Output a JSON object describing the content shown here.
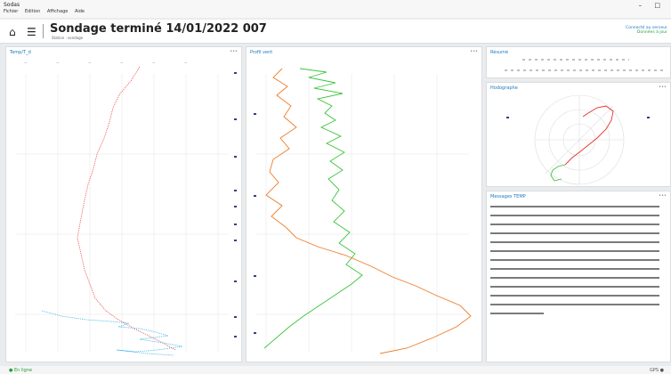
{
  "window": {
    "title": "Sodas",
    "controls": "– □"
  },
  "menu": [
    "Fichier",
    "Edition",
    "Affichage",
    "Aide"
  ],
  "header": {
    "title": "Sondage terminé 14/01/2022 007",
    "subtitle": "Station · sondage",
    "right_line1": "Connecté au serveur",
    "right_line2": "Données à jour"
  },
  "panels": {
    "temp": {
      "title": "Temp/T_d",
      "menu": "•••"
    },
    "wind": {
      "title": "Profil vent",
      "menu": "•••"
    },
    "summary": {
      "title": "Résumé"
    },
    "hodograph": {
      "title": "Hodographe",
      "menu": "•••"
    },
    "table": {
      "title": "Messages TEMP",
      "menu": "•••"
    }
  },
  "colors": {
    "temperature": "#e8302a",
    "dewpoint": "#27a9e1",
    "wind_speed": "#ee7d2a",
    "wind_direction": "#3cc43c",
    "accent": "#1a7abf"
  },
  "status": {
    "left": "● En ligne",
    "right": "GPS ●"
  }
}
